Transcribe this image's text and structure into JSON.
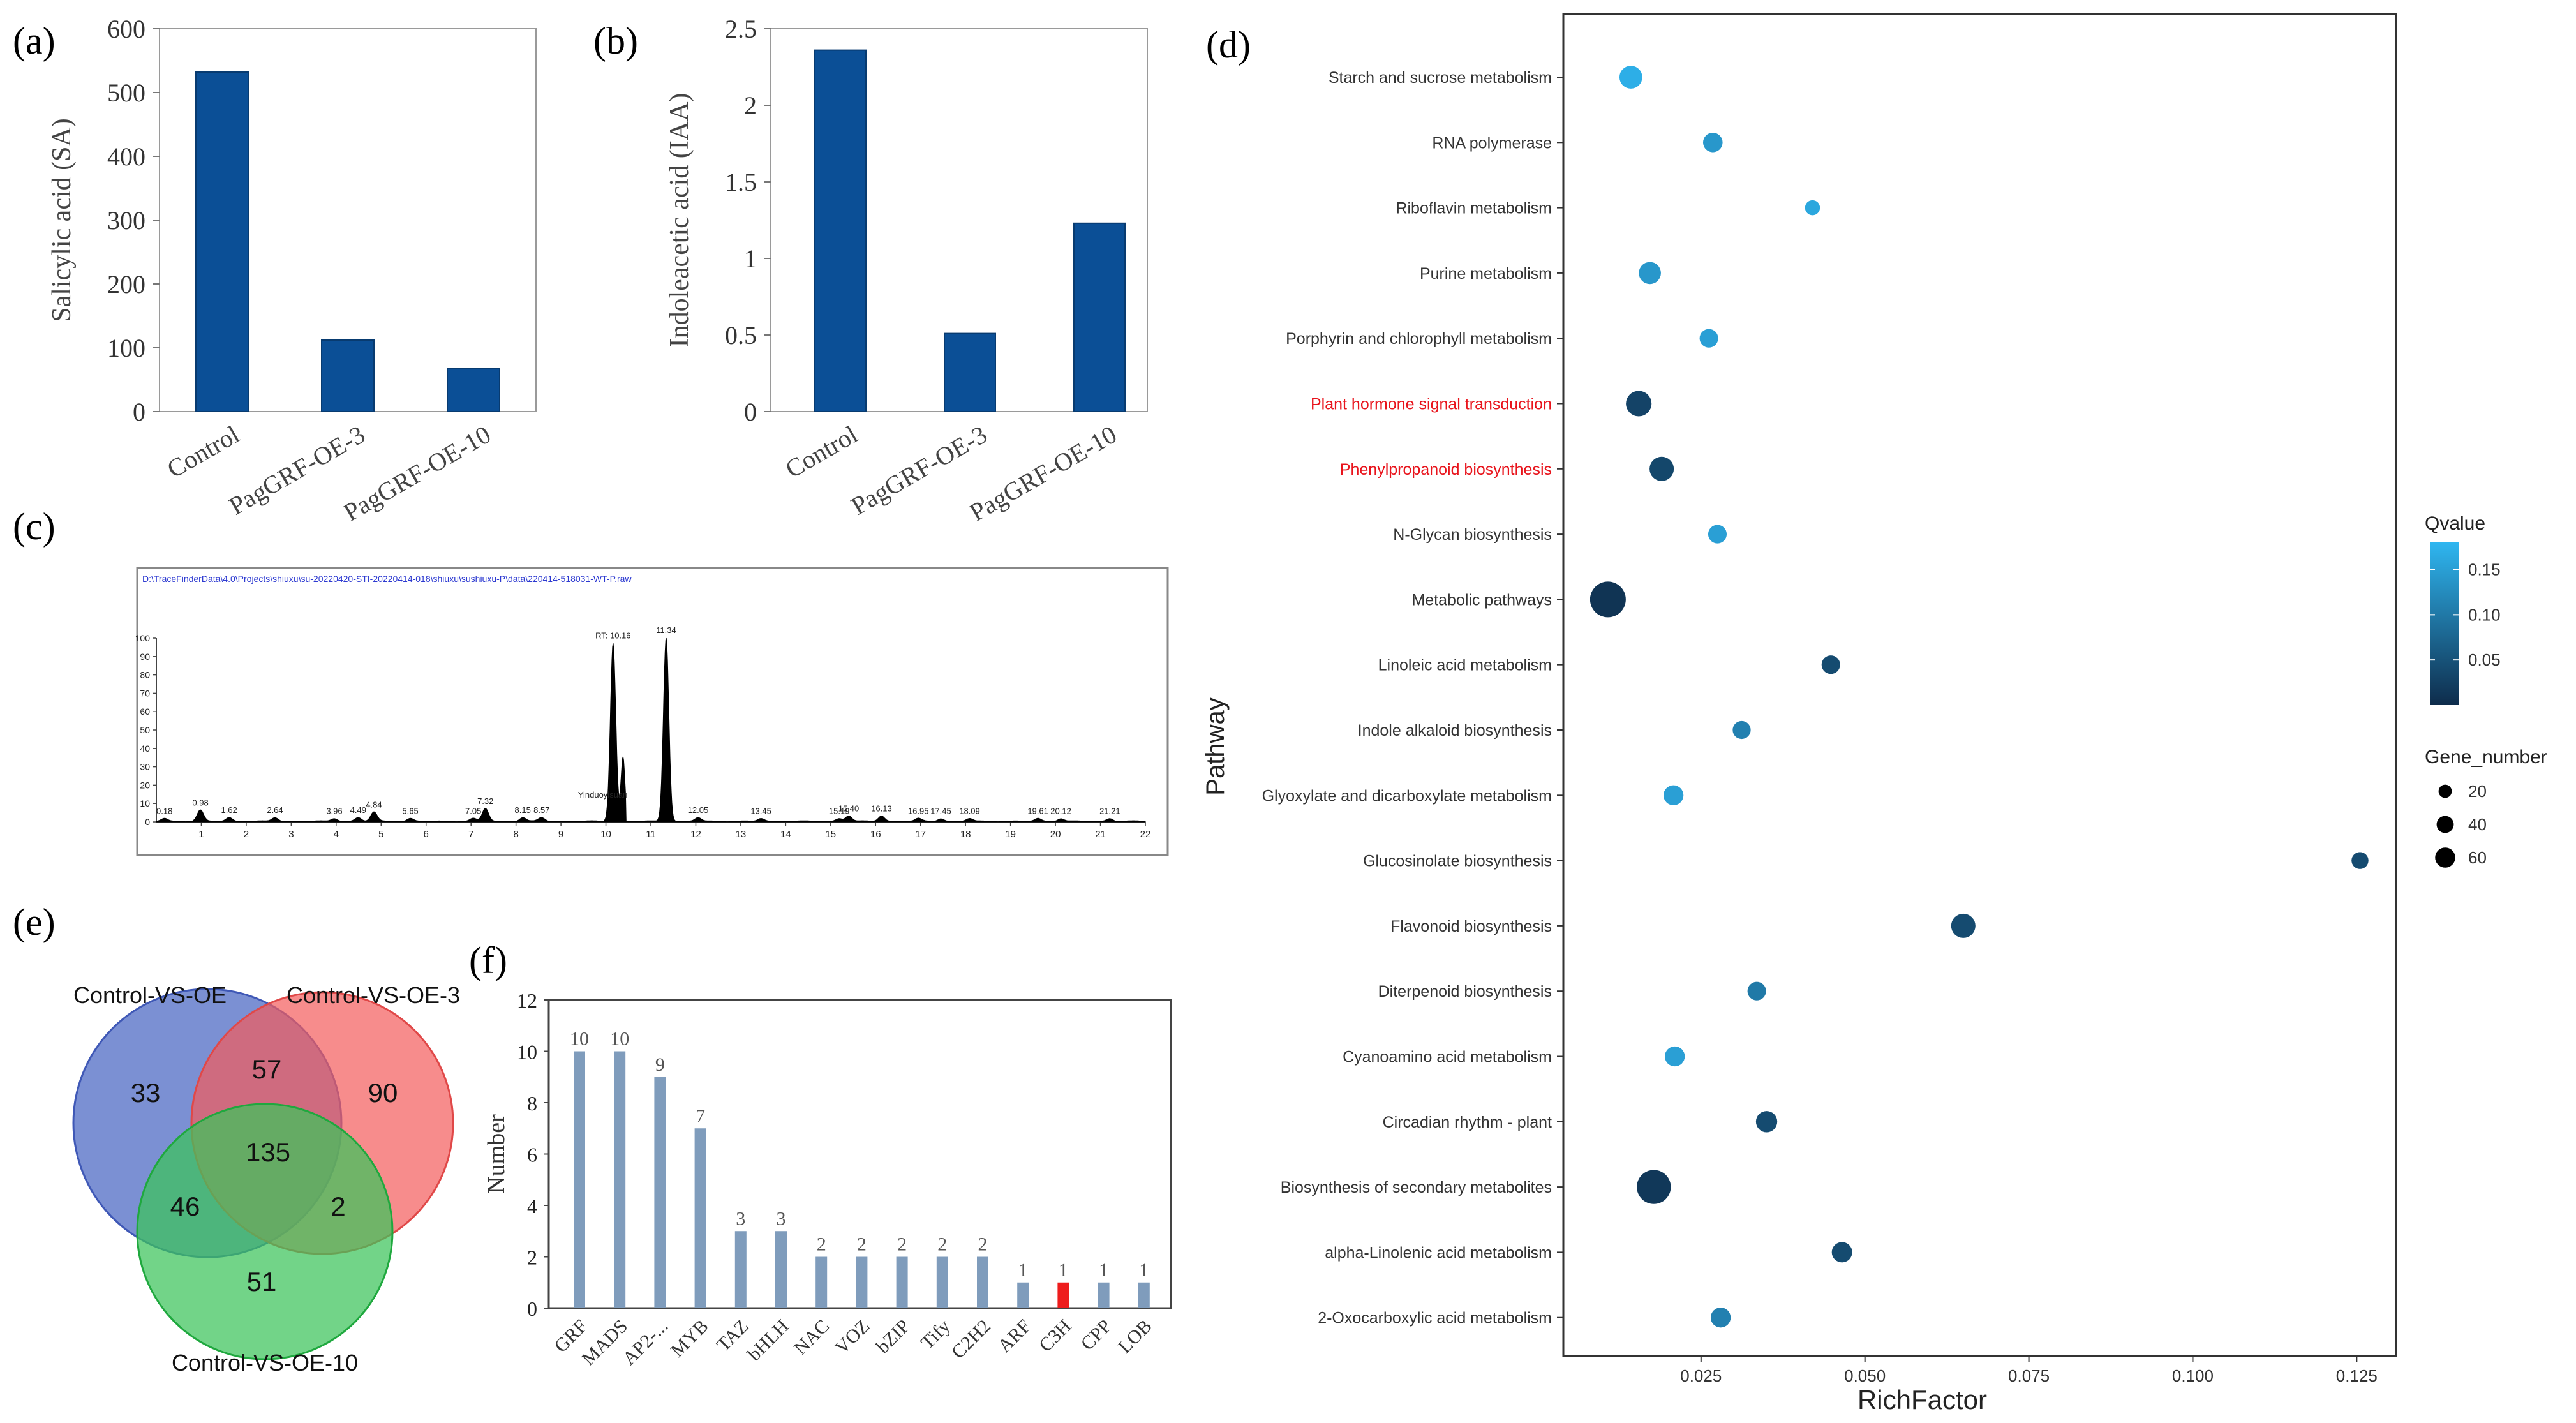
{
  "chart_data": [
    {
      "panel": "(a)",
      "type": "bar",
      "categories": [
        "Control",
        "PagGRF-OE-3",
        "PagGRF-OE-10"
      ],
      "values": [
        532,
        112,
        68
      ],
      "ylabel": "Salicylic acid (SA)",
      "ylim": [
        0,
        600
      ],
      "yticks": [
        "0",
        "100",
        "200",
        "300",
        "400",
        "500",
        "600"
      ],
      "color": "#0b4f96"
    },
    {
      "panel": "(b)",
      "type": "bar",
      "categories": [
        "Control",
        "PagGRF-OE-3",
        "PagGRF-OE-10"
      ],
      "values": [
        2.36,
        0.51,
        1.23
      ],
      "ylabel": "Indoleacetic acid (IAA)",
      "ylim": [
        0,
        2.5
      ],
      "yticks": [
        "0",
        "0.5",
        "1",
        "1.5",
        "2",
        "2.5"
      ],
      "color": "#0b4f96"
    },
    {
      "panel": "(c)",
      "type": "line",
      "title": "D:\\TraceFinderData\\4.0\\Projects\\shiuxu\\su-20220420-STI-20220414-018\\shiuxu\\sushiuxu-P\\data\\220414-518031-WT-P.raw",
      "xlim": [
        0,
        22
      ],
      "xticks": [
        "1",
        "2",
        "3",
        "4",
        "5",
        "6",
        "7",
        "8",
        "9",
        "10",
        "11",
        "12",
        "13",
        "14",
        "15",
        "16",
        "17",
        "18",
        "19",
        "20",
        "21",
        "22"
      ],
      "yticks": [
        "100",
        "90",
        "80",
        "70",
        "60",
        "50",
        "40",
        "30",
        "20",
        "10",
        "0"
      ],
      "ylim": [
        0,
        100
      ],
      "peaks": [
        {
          "rt": 0.18,
          "h": 1.5,
          "label": "0.18"
        },
        {
          "rt": 0.98,
          "h": 6,
          "label": "0.98"
        },
        {
          "rt": 1.62,
          "h": 2,
          "label": "1.62"
        },
        {
          "rt": 2.64,
          "h": 2,
          "label": "2.64"
        },
        {
          "rt": 3.96,
          "h": 1.5,
          "label": "3.96"
        },
        {
          "rt": 4.49,
          "h": 2,
          "label": "4.49"
        },
        {
          "rt": 4.84,
          "h": 5,
          "label": "4.84"
        },
        {
          "rt": 5.65,
          "h": 1.5,
          "label": "5.65"
        },
        {
          "rt": 7.05,
          "h": 1.5,
          "label": "7.05"
        },
        {
          "rt": 7.32,
          "h": 7,
          "label": "7.32"
        },
        {
          "rt": 8.15,
          "h": 2,
          "label": "8.15"
        },
        {
          "rt": 8.57,
          "h": 2,
          "label": "8.57"
        },
        {
          "rt": 10.16,
          "h": 97,
          "label": "RT: 10.16"
        },
        {
          "rt": 11.34,
          "h": 100,
          "label": "11.34"
        },
        {
          "rt": 12.05,
          "h": 2,
          "label": "12.05"
        },
        {
          "rt": 13.45,
          "h": 1.5,
          "label": "13.45"
        },
        {
          "rt": 15.19,
          "h": 1.5,
          "label": "15.19"
        },
        {
          "rt": 15.4,
          "h": 3,
          "label": "15.40"
        },
        {
          "rt": 16.13,
          "h": 3,
          "label": "16.13"
        },
        {
          "rt": 16.95,
          "h": 1.5,
          "label": "16.95"
        },
        {
          "rt": 17.45,
          "h": 1.5,
          "label": "17.45"
        },
        {
          "rt": 18.09,
          "h": 1.5,
          "label": "18.09"
        },
        {
          "rt": 19.61,
          "h": 1.5,
          "label": "19.61"
        },
        {
          "rt": 20.12,
          "h": 1.5,
          "label": "20.12"
        },
        {
          "rt": 21.21,
          "h": 1.5,
          "label": "21.21"
        }
      ],
      "annotation": "Yinduoyisuan"
    },
    {
      "panel": "(e)",
      "type": "venn",
      "sets": [
        "Control-VS-OE",
        "Control-VS-OE-3",
        "Control-VS-OE-10"
      ],
      "regions": {
        "only_OE": 33,
        "only_OE3": 90,
        "only_OE10": 51,
        "OE_OE3": 57,
        "OE_OE10": 46,
        "OE3_OE10": 2,
        "all": 135
      },
      "colors": [
        "#5a74c8",
        "#f45b5b",
        "#3cc45a"
      ]
    },
    {
      "panel": "(f)",
      "type": "bar",
      "categories": [
        "GRF",
        "MADS",
        "AP2-...",
        "MYB",
        "TAZ",
        "bHLH",
        "NAC",
        "VOZ",
        "bZIP",
        "Tify",
        "C2H2",
        "ARF",
        "C3H",
        "CPP",
        "LOB"
      ],
      "values": [
        10,
        10,
        9,
        7,
        3,
        3,
        2,
        2,
        2,
        2,
        2,
        1,
        1,
        1,
        1
      ],
      "ylabel": "Number",
      "ylim": [
        0,
        12
      ],
      "yticks": [
        "0",
        "2",
        "4",
        "6",
        "8",
        "10",
        "12"
      ],
      "color": "#7f9cbc",
      "highlight": {
        "category": "C3H",
        "color": "#ee1c1c"
      }
    },
    {
      "panel": "(d)",
      "type": "scatter",
      "xlabel": "RichFactor",
      "ylabel": "Pathway",
      "xlim": [
        0.004,
        0.131
      ],
      "xticks": [
        {
          "value": 0.025,
          "label": "0.025"
        },
        {
          "value": 0.05,
          "label": "0.050"
        },
        {
          "value": 0.075,
          "label": "0.075"
        },
        {
          "value": 0.1,
          "label": "0.100"
        },
        {
          "value": 0.125,
          "label": "0.125"
        }
      ],
      "points": [
        {
          "pathway": "Starch and sucrose metabolism",
          "rich": 0.0143,
          "q": 0.17,
          "genes": 22,
          "highlight": false
        },
        {
          "pathway": "RNA polymerase",
          "rich": 0.0268,
          "q": 0.14,
          "genes": 14,
          "highlight": false
        },
        {
          "pathway": "Riboflavin metabolism",
          "rich": 0.042,
          "q": 0.16,
          "genes": 6,
          "highlight": false
        },
        {
          "pathway": "Purine metabolism",
          "rich": 0.0172,
          "q": 0.14,
          "genes": 20,
          "highlight": false
        },
        {
          "pathway": "Porphyrin and chlorophyll metabolism",
          "rich": 0.0262,
          "q": 0.15,
          "genes": 12,
          "highlight": false
        },
        {
          "pathway": "Plant hormone signal transduction",
          "rich": 0.0155,
          "q": 0.03,
          "genes": 30,
          "highlight": true
        },
        {
          "pathway": "Phenylpropanoid biosynthesis",
          "rich": 0.019,
          "q": 0.035,
          "genes": 26,
          "highlight": true
        },
        {
          "pathway": "N-Glycan biosynthesis",
          "rich": 0.0275,
          "q": 0.15,
          "genes": 12,
          "highlight": false
        },
        {
          "pathway": "Metabolic pathways",
          "rich": 0.0108,
          "q": 0.01,
          "genes": 70,
          "highlight": false
        },
        {
          "pathway": "Linoleic acid metabolism",
          "rich": 0.0448,
          "q": 0.04,
          "genes": 12,
          "highlight": false
        },
        {
          "pathway": "Indole alkaloid biosynthesis",
          "rich": 0.0312,
          "q": 0.11,
          "genes": 11,
          "highlight": false
        },
        {
          "pathway": "Glyoxylate and dicarboxylate metabolism",
          "rich": 0.0208,
          "q": 0.15,
          "genes": 15,
          "highlight": false
        },
        {
          "pathway": "Glucosinolate biosynthesis",
          "rich": 0.1255,
          "q": 0.04,
          "genes": 9,
          "highlight": false
        },
        {
          "pathway": "Flavonoid biosynthesis",
          "rich": 0.065,
          "q": 0.04,
          "genes": 26,
          "highlight": false
        },
        {
          "pathway": "Diterpenoid biosynthesis",
          "rich": 0.0335,
          "q": 0.1,
          "genes": 12,
          "highlight": false
        },
        {
          "pathway": "Cyanoamino acid metabolism",
          "rich": 0.021,
          "q": 0.15,
          "genes": 15,
          "highlight": false
        },
        {
          "pathway": "Circadian rhythm - plant",
          "rich": 0.035,
          "q": 0.04,
          "genes": 18,
          "highlight": false
        },
        {
          "pathway": "Biosynthesis of secondary metabolites",
          "rich": 0.0178,
          "q": 0.015,
          "genes": 62,
          "highlight": false
        },
        {
          "pathway": "alpha-Linolenic acid metabolism",
          "rich": 0.0465,
          "q": 0.04,
          "genes": 16,
          "highlight": false
        },
        {
          "pathway": "2-Oxocarboxylic acid metabolism",
          "rich": 0.028,
          "q": 0.11,
          "genes": 15,
          "highlight": false
        }
      ],
      "legend_q": {
        "title": "Qvalue",
        "min": 0.0,
        "max": 0.18,
        "ticks": [
          {
            "value": 0.15,
            "label": "0.15"
          },
          {
            "value": 0.1,
            "label": "0.10"
          },
          {
            "value": 0.05,
            "label": "0.05"
          }
        ],
        "color_low": "#0e2c4b",
        "color_high": "#2fb6f0"
      },
      "legend_size": {
        "title": "Gene_number",
        "entries": [
          {
            "value": 20,
            "label": "20"
          },
          {
            "value": 40,
            "label": "40"
          },
          {
            "value": 60,
            "label": "60"
          }
        ]
      },
      "highlight_color": "#e8141c"
    }
  ]
}
